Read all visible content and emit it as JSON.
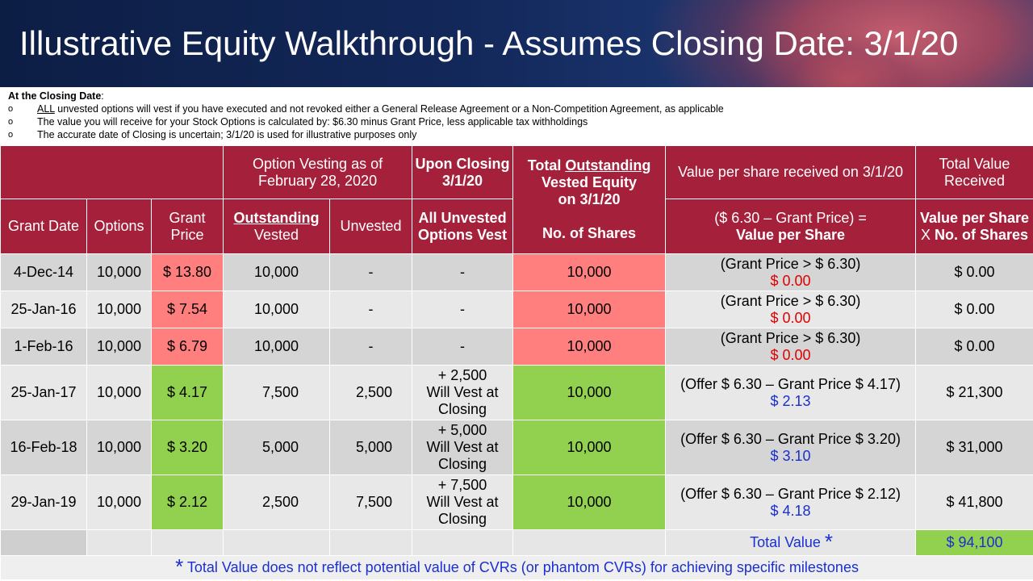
{
  "header": {
    "title": "Illustrative Equity Walkthrough - Assumes Closing Date: 3/1/20"
  },
  "notes": {
    "lead_bold": "At the Closing Date",
    "lead_colon": ":",
    "bullet_glyph": "o",
    "bullets": [
      {
        "underlined": "ALL",
        "text": " unvested options will vest if you have executed and not revoked either a General Release Agreement or a Non-Competition Agreement, as applicable"
      },
      {
        "underlined": "",
        "text": "The value you will receive for your Stock Options is calculated by: $6.30 minus Grant Price, less applicable tax withholdings"
      },
      {
        "underlined": "",
        "text": "The accurate date of Closing is uncertain; 3/1/20 is used for illustrative purposes only"
      }
    ]
  },
  "table": {
    "groups": {
      "vesting_line1": "Option Vesting as of",
      "vesting_line2": "February 28, 2020",
      "closing_line1": "Upon Closing",
      "closing_line2": "3/1/20",
      "total_pre": "Total ",
      "total_underlined": "Outstanding",
      "total_line2": "Vested Equity",
      "total_line3": "on 3/1/20",
      "value_per_share": "Value per share received on 3/1/20",
      "total_value_line1": "Total Value",
      "total_value_line2": "Received"
    },
    "columns": {
      "grant_date": "Grant Date",
      "options": "Options",
      "grant_price_line1": "Grant",
      "grant_price_line2": "Price",
      "outstanding": "Outstanding",
      "vested": "Vested",
      "unvested": "Unvested",
      "all_unvested_line1": "All Unvested",
      "all_unvested_line2": "Options Vest",
      "no_of_shares": "No. of Shares",
      "formula_line1": "($ 6.30 – Grant Price) =",
      "formula_line2": "Value per Share",
      "tv_line1": "Value per Share",
      "tv_x": "X",
      "tv_line2": " No. of Shares"
    },
    "rows": [
      {
        "grant_date": "4-Dec-14",
        "options": "10,000",
        "grant_price": "$ 13.80",
        "vested": "10,000",
        "unvested": "-",
        "closing_l1": "-",
        "closing_l2": "",
        "closing_l3": "",
        "shares": "10,000",
        "calc": "(Grant Price > $ 6.30)",
        "per_share": "$ 0.00",
        "total": "$ 0.00"
      },
      {
        "grant_date": "25-Jan-16",
        "options": "10,000",
        "grant_price": "$ 7.54",
        "vested": "10,000",
        "unvested": "-",
        "closing_l1": "-",
        "closing_l2": "",
        "closing_l3": "",
        "shares": "10,000",
        "calc": "(Grant Price > $ 6.30)",
        "per_share": "$ 0.00",
        "total": "$ 0.00"
      },
      {
        "grant_date": "1-Feb-16",
        "options": "10,000",
        "grant_price": "$ 6.79",
        "vested": "10,000",
        "unvested": "-",
        "closing_l1": "-",
        "closing_l2": "",
        "closing_l3": "",
        "shares": "10,000",
        "calc": "(Grant Price > $ 6.30)",
        "per_share": "$ 0.00",
        "total": "$ 0.00"
      },
      {
        "grant_date": "25-Jan-17",
        "options": "10,000",
        "grant_price": "$ 4.17",
        "vested": "7,500",
        "unvested": "2,500",
        "closing_l1": "+ 2,500",
        "closing_l2": "Will Vest at",
        "closing_l3": "Closing",
        "shares": "10,000",
        "calc": "(Offer $ 6.30 – Grant Price $ 4.17)",
        "per_share": "$ 2.13",
        "total": "$ 21,300"
      },
      {
        "grant_date": "16-Feb-18",
        "options": "10,000",
        "grant_price": "$ 3.20",
        "vested": "5,000",
        "unvested": "5,000",
        "closing_l1": "+ 5,000",
        "closing_l2": "Will Vest at",
        "closing_l3": "Closing",
        "shares": "10,000",
        "calc": "(Offer $ 6.30 – Grant Price $ 3.20)",
        "per_share": "$ 3.10",
        "total": "$ 31,000"
      },
      {
        "grant_date": "29-Jan-19",
        "options": "10,000",
        "grant_price": "$ 2.12",
        "vested": "2,500",
        "unvested": "7,500",
        "closing_l1": "+ 7,500",
        "closing_l2": "Will Vest at",
        "closing_l3": "Closing",
        "shares": "10,000",
        "calc": "(Offer $ 6.30 – Grant Price $ 2.12)",
        "per_share": "$ 4.18",
        "total": "$ 41,800"
      }
    ],
    "total_label": "Total Value",
    "total_star": "*",
    "total_value": "$  94,100",
    "footnote_star": "*",
    "footnote": " Total Value does not reflect potential value of CVRs (or phantom CVRs) for achieving specific milestones"
  },
  "colors": {
    "header_red": "#a5203a",
    "loss_red": "#ff7f7f",
    "gain_green": "#92d050",
    "value_blue": "#1a2fd0",
    "zero_red": "#e00000",
    "banner_navy": "#13285a"
  }
}
